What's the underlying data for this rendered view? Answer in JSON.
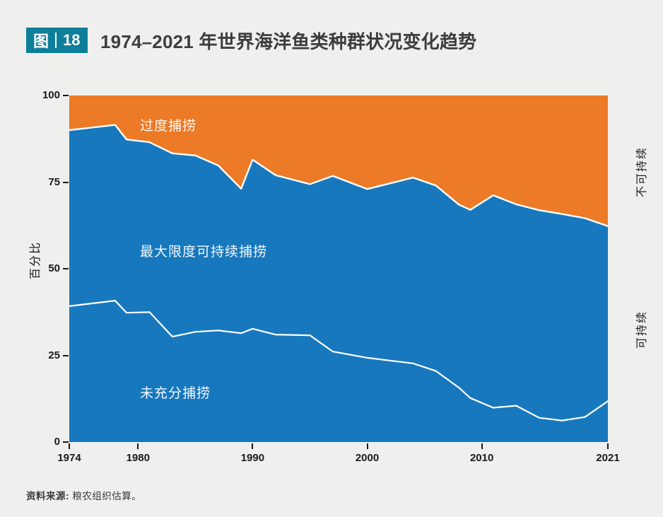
{
  "figure": {
    "badge_label": "图",
    "badge_number": "18",
    "title": "1974–2021 年世界海洋鱼类种群状况变化趋势"
  },
  "colors": {
    "background": "#efefee",
    "overfished_orange": "#ec7a26",
    "sustainable_blue": "#1778be",
    "badge_teal": "#0e7f9b",
    "boundary_line": "#ffffff",
    "axis_text": "#1a1a1a"
  },
  "axes": {
    "y": {
      "label": "百分比",
      "ticks": [
        0,
        25,
        50,
        75,
        100
      ]
    },
    "x": {
      "tick_years": [
        1974,
        1980,
        1990,
        2000,
        2010,
        2021
      ],
      "tick_labels": [
        "1974",
        "1980",
        "1990",
        "2000",
        "2010",
        "2021"
      ]
    }
  },
  "area_labels": {
    "overfished": "过度捕捞",
    "msf": "最大限度可持续捕捞",
    "underfished": "未充分捕捞"
  },
  "right_labels": {
    "unsustainable": "不可持续",
    "sustainable": "可持续"
  },
  "source": {
    "label": "资料来源:",
    "text": " 粮农组织估算。"
  },
  "chart_data": {
    "type": "area",
    "title": "图 18 | 1974–2021 年世界海洋鱼类种群状况变化趋势",
    "xlabel": "",
    "ylabel": "百分比",
    "xlim": [
      1974,
      2021
    ],
    "ylim": [
      0,
      100
    ],
    "grid": false,
    "legend": "labels drawn inside areas; rotated labels 不可持续 / 可持续 on right edge",
    "years": [
      1974,
      1978,
      1979,
      1981,
      1983,
      1985,
      1987,
      1989,
      1990,
      1992,
      1995,
      1997,
      2000,
      2004,
      2006,
      2008,
      2009,
      2011,
      2013,
      2015,
      2017,
      2019,
      2021
    ],
    "series": [
      {
        "name": "过度捕捞",
        "color": "#ec7a26",
        "values": [
          10.0,
          8.5,
          12.7,
          13.5,
          16.7,
          17.3,
          20.2,
          26.9,
          18.5,
          23.0,
          25.6,
          23.2,
          27.0,
          23.7,
          26.0,
          31.5,
          33.0,
          28.8,
          31.4,
          33.1,
          34.2,
          35.4,
          37.7
        ]
      },
      {
        "name": "最大限度可持续捕捞",
        "color": "#1778be",
        "values": [
          50.8,
          50.7,
          50.0,
          49.0,
          52.9,
          50.9,
          47.6,
          41.7,
          48.8,
          46.0,
          43.6,
          50.7,
          48.7,
          53.6,
          53.5,
          52.8,
          54.3,
          61.3,
          58.1,
          59.9,
          59.6,
          57.4,
          50.5
        ]
      },
      {
        "name": "未充分捕捞",
        "color": "#1778be",
        "values": [
          39.2,
          40.8,
          37.3,
          37.5,
          30.4,
          31.8,
          32.2,
          31.4,
          32.7,
          31.0,
          30.8,
          26.1,
          24.3,
          22.7,
          20.5,
          15.7,
          12.7,
          9.9,
          10.5,
          7.0,
          6.2,
          7.2,
          11.8
        ]
      }
    ],
    "boundaries": {
      "sustainable_line": [
        90.0,
        91.5,
        87.3,
        86.5,
        83.3,
        82.7,
        79.8,
        73.1,
        81.5,
        77.0,
        74.4,
        76.8,
        73.0,
        76.3,
        74.0,
        68.5,
        67.0,
        71.2,
        68.6,
        66.9,
        65.8,
        64.6,
        62.3
      ],
      "underfished_line": [
        39.2,
        40.8,
        37.3,
        37.5,
        30.4,
        31.8,
        32.2,
        31.4,
        32.7,
        31.0,
        30.8,
        26.1,
        24.3,
        22.7,
        20.5,
        15.7,
        12.7,
        9.9,
        10.5,
        7.0,
        6.2,
        7.2,
        11.8
      ]
    }
  }
}
